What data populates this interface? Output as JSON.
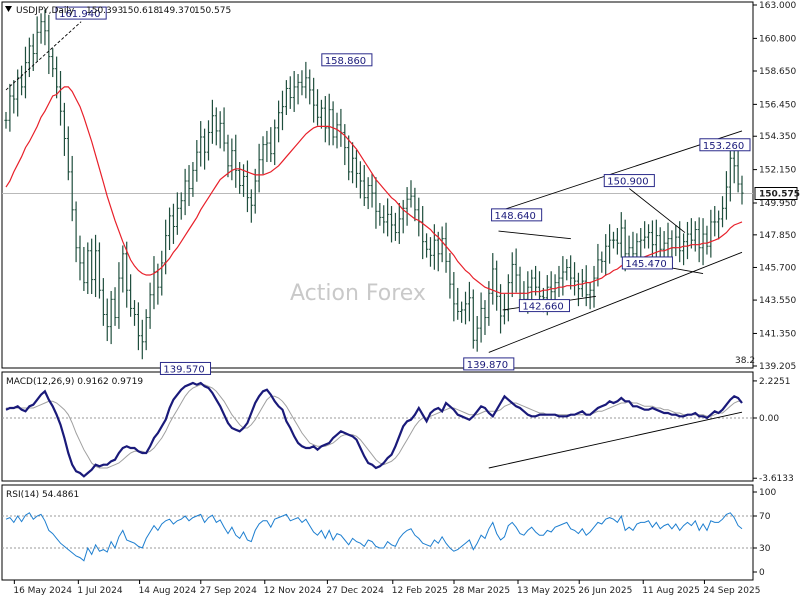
{
  "chart_data": [
    {
      "type": "ohlc",
      "title": "USDJPY,Daily",
      "ohlc_readout": [
        "150.393",
        "150.618",
        "149.370",
        "150.575"
      ],
      "watermark": "Action Forex",
      "ylim": [
        139.205,
        163.0
      ],
      "y_tick_labels": [
        "163.000",
        "160.800",
        "158.650",
        "156.450",
        "154.350",
        "152.150",
        "149.950",
        "147.850",
        "145.700",
        "143.550",
        "141.350",
        "139.205"
      ],
      "x_tick_labels": [
        "16 May 2024",
        "1 Jul 2024",
        "14 Aug 2024",
        "27 Sep 2024",
        "12 Nov 2024",
        "27 Dec 2024",
        "12 Feb 2025",
        "28 Mar 2025",
        "13 May 2025",
        "26 Jun 2025",
        "11 Aug 2025",
        "24 Sep 2025"
      ],
      "last_price": "150.575",
      "fib_label": "38.2",
      "price_labels": [
        {
          "text": "161.940",
          "value": 161.94,
          "date": "2024-07-03"
        },
        {
          "text": "158.860",
          "value": 158.86,
          "date": "2025-01-10"
        },
        {
          "text": "139.570",
          "value": 139.57,
          "date": "2024-09-16"
        },
        {
          "text": "139.870",
          "value": 139.87,
          "date": "2025-04-22"
        },
        {
          "text": "148.640",
          "value": 148.64,
          "date": "2025-05-12"
        },
        {
          "text": "142.660",
          "value": 142.66,
          "date": "2025-06-01"
        },
        {
          "text": "150.900",
          "value": 150.9,
          "date": "2025-08-01"
        },
        {
          "text": "145.470",
          "value": 145.47,
          "date": "2025-08-14"
        },
        {
          "text": "153.260",
          "value": 153.26,
          "date": "2025-10-10"
        }
      ],
      "moving_average_color": "#e8202a",
      "bar_color": "#1f4e3d",
      "close_series": [
        155.4,
        157.0,
        156.8,
        158.2,
        157.6,
        159.2,
        160.3,
        159.8,
        161.2,
        161.9,
        161.3,
        159.6,
        158.8,
        157.6,
        156.0,
        154.2,
        152.0,
        149.5,
        147.0,
        146.0,
        144.7,
        146.8,
        144.9,
        146.8,
        144.2,
        142.6,
        141.8,
        143.6,
        142.4,
        145.0,
        146.6,
        144.2,
        143.0,
        142.6,
        141.2,
        140.8,
        142.4,
        143.9,
        145.4,
        144.4,
        146.0,
        147.8,
        149.1,
        148.4,
        149.6,
        150.1,
        151.4,
        150.9,
        152.1,
        153.3,
        154.3,
        153.3,
        154.6,
        155.7,
        154.7,
        155.2,
        153.9,
        152.4,
        153.4,
        152.1,
        151.1,
        151.7,
        150.3,
        149.8,
        151.4,
        152.8,
        153.8,
        153.9,
        153.2,
        154.9,
        155.9,
        156.3,
        157.5,
        156.9,
        157.6,
        157.9,
        157.6,
        158.2,
        157.4,
        156.4,
        155.6,
        156.2,
        154.9,
        156.1,
        154.3,
        155.1,
        154.6,
        153.6,
        152.0,
        152.9,
        151.9,
        151.4,
        150.3,
        151.1,
        150.6,
        149.4,
        149.0,
        148.7,
        149.2,
        148.5,
        148.0,
        148.9,
        149.6,
        150.2,
        150.4,
        149.5,
        148.7,
        147.4,
        146.9,
        146.5,
        147.5,
        146.6,
        147.6,
        146.1,
        144.6,
        143.3,
        142.8,
        142.9,
        143.3,
        143.7,
        140.9,
        141.7,
        143.0,
        142.4,
        144.0,
        145.6,
        143.8,
        142.5,
        142.9,
        144.7,
        145.9,
        145.2,
        144.0,
        143.6,
        144.4,
        145.0,
        144.4,
        143.8,
        143.7,
        144.4,
        144.1,
        144.7,
        145.0,
        145.4,
        145.7,
        145.0,
        144.8,
        144.3,
        144.8,
        143.9,
        144.2,
        145.0,
        146.2,
        146.1,
        147.1,
        147.5,
        147.5,
        147.3,
        148.3,
        146.6,
        147.0,
        146.6,
        147.4,
        147.5,
        147.7,
        148.0,
        147.2,
        147.8,
        146.9,
        147.3,
        147.6,
        147.0,
        147.7,
        146.8,
        147.4,
        147.9,
        147.5,
        148.2,
        147.0,
        147.9,
        147.1,
        148.7,
        148.7,
        148.9,
        149.6,
        151.0,
        152.9,
        152.4,
        151.2,
        150.6
      ],
      "ma_series": [
        151.0,
        151.4,
        152.0,
        152.5,
        153.0,
        153.6,
        154.0,
        154.5,
        155.0,
        155.6,
        156.0,
        156.5,
        157.0,
        157.1,
        157.4,
        157.6,
        157.6,
        157.3,
        156.8,
        156.3,
        155.6,
        154.8,
        154.0,
        153.1,
        152.2,
        151.3,
        150.4,
        149.6,
        148.8,
        148.1,
        147.4,
        146.8,
        146.2,
        145.8,
        145.5,
        145.3,
        145.2,
        145.2,
        145.3,
        145.5,
        145.7,
        146.0,
        146.3,
        146.7,
        147.0,
        147.4,
        147.8,
        148.2,
        148.6,
        149.0,
        149.5,
        149.9,
        150.3,
        150.7,
        151.1,
        151.5,
        151.7,
        151.9,
        152.1,
        152.2,
        152.2,
        152.1,
        152.0,
        151.9,
        151.8,
        151.8,
        151.8,
        151.9,
        152.0,
        152.2,
        152.4,
        152.7,
        153.0,
        153.3,
        153.6,
        153.9,
        154.2,
        154.5,
        154.7,
        154.9,
        155.0,
        155.0,
        155.0,
        155.0,
        154.9,
        154.8,
        154.6,
        154.4,
        154.1,
        153.8,
        153.5,
        153.1,
        152.7,
        152.3,
        151.9,
        151.5,
        151.2,
        150.9,
        150.6,
        150.3,
        150.1,
        149.8,
        149.5,
        149.3,
        149.1,
        148.9,
        148.8,
        148.6,
        148.4,
        148.2,
        147.9,
        147.7,
        147.4,
        147.1,
        146.8,
        146.5,
        146.1,
        145.8,
        145.5,
        145.3,
        145.0,
        144.8,
        144.6,
        144.4,
        144.3,
        144.2,
        144.1,
        144.0,
        144.0,
        144.0,
        144.0,
        144.0,
        144.0,
        144.0,
        144.0,
        144.1,
        144.1,
        144.1,
        144.2,
        144.2,
        144.3,
        144.3,
        144.4,
        144.4,
        144.5,
        144.5,
        144.5,
        144.6,
        144.6,
        144.7,
        144.7,
        144.8,
        144.9,
        145.0,
        145.2,
        145.3,
        145.5,
        145.6,
        145.8,
        145.9,
        146.0,
        146.1,
        146.2,
        146.3,
        146.4,
        146.5,
        146.6,
        146.7,
        146.8,
        146.8,
        146.9,
        147.0,
        147.0,
        147.0,
        147.1,
        147.1,
        147.2,
        147.2,
        147.2,
        147.3,
        147.3,
        147.4,
        147.5,
        147.6,
        147.8,
        148.0,
        148.3,
        148.5,
        148.6,
        148.7
      ],
      "trendlines": [
        {
          "from": [
            "2024-05-10",
            157.4
          ],
          "to": [
            "2024-07-03",
            161.9
          ],
          "style": "dashed"
        },
        {
          "from": [
            "2025-04-29",
            149.4
          ],
          "to": [
            "2025-10-21",
            154.7
          ],
          "style": "solid"
        },
        {
          "from": [
            "2025-04-22",
            140.1
          ],
          "to": [
            "2025-10-21",
            146.7
          ],
          "style": "solid"
        },
        {
          "from": [
            "2025-04-29",
            148.1
          ],
          "to": [
            "2025-06-20",
            147.6
          ],
          "style": "solid"
        },
        {
          "from": [
            "2025-05-02",
            142.9
          ],
          "to": [
            "2025-07-08",
            143.8
          ],
          "style": "solid"
        },
        {
          "from": [
            "2025-08-01",
            150.9
          ],
          "to": [
            "2025-09-10",
            148.0
          ],
          "style": "solid"
        },
        {
          "from": [
            "2025-08-05",
            146.1
          ],
          "to": [
            "2025-09-23",
            145.3
          ],
          "style": "solid"
        }
      ]
    },
    {
      "type": "line",
      "title": "MACD(12,26,9) 0.9162 0.9719",
      "ylim": [
        -3.6,
        2.4
      ],
      "y_tick_labels": [
        "2.2251",
        "0.00",
        "-3.6133"
      ],
      "series_colors": [
        "#1a1a7a",
        "#a0a0a0"
      ],
      "macd": [
        0.5,
        0.6,
        0.6,
        0.7,
        0.5,
        0.4,
        0.7,
        0.8,
        1.1,
        1.4,
        1.6,
        1.1,
        0.7,
        0.2,
        -0.4,
        -1.2,
        -2.1,
        -2.8,
        -3.2,
        -3.3,
        -3.5,
        -3.3,
        -3.1,
        -2.8,
        -2.9,
        -2.8,
        -2.8,
        -2.6,
        -2.5,
        -2.1,
        -1.8,
        -1.7,
        -1.8,
        -1.8,
        -2.0,
        -2.1,
        -2.1,
        -1.7,
        -1.2,
        -0.9,
        -0.5,
        -0.1,
        0.6,
        1.1,
        1.4,
        1.7,
        1.9,
        2.0,
        2.1,
        2.0,
        2.1,
        1.9,
        1.8,
        1.5,
        1.1,
        0.7,
        0.2,
        -0.3,
        -0.6,
        -0.7,
        -0.8,
        -0.6,
        -0.3,
        0.3,
        0.9,
        1.3,
        1.6,
        1.7,
        1.4,
        1.0,
        0.7,
        0.5,
        -0.2,
        -0.6,
        -1.1,
        -1.5,
        -1.7,
        -1.8,
        -1.8,
        -1.7,
        -1.9,
        -1.7,
        -1.6,
        -1.5,
        -1.2,
        -1.0,
        -0.8,
        -0.9,
        -1.0,
        -1.1,
        -1.3,
        -1.8,
        -2.3,
        -2.7,
        -2.8,
        -3.0,
        -2.9,
        -2.7,
        -2.4,
        -2.2,
        -1.7,
        -1.1,
        -0.5,
        -0.2,
        -0.1,
        0.2,
        0.6,
        0.2,
        -0.2,
        0.3,
        0.5,
        0.6,
        0.4,
        0.9,
        0.7,
        0.5,
        0.2,
        0.1,
        0.0,
        -0.1,
        0.1,
        0.4,
        0.7,
        0.6,
        0.3,
        0.1,
        0.5,
        0.9,
        1.3,
        1.1,
        0.9,
        0.7,
        0.6,
        0.4,
        0.2,
        0.1,
        0.1,
        0.2,
        0.2,
        0.2,
        0.2,
        0.2,
        0.1,
        0.1,
        0.1,
        0.2,
        0.2,
        0.3,
        0.4,
        0.2,
        0.2,
        0.4,
        0.6,
        0.7,
        0.8,
        1.0,
        0.9,
        1.0,
        1.2,
        1.0,
        1.0,
        0.7,
        0.7,
        0.6,
        0.5,
        0.5,
        0.6,
        0.5,
        0.4,
        0.3,
        0.3,
        0.2,
        0.2,
        0.1,
        0.1,
        0.2,
        0.2,
        0.3,
        0.1,
        0.1,
        0.0,
        0.2,
        0.4,
        0.3,
        0.5,
        0.8,
        1.1,
        1.3,
        1.2,
        0.9
      ],
      "signal": [
        0.6,
        0.6,
        0.6,
        0.6,
        0.6,
        0.6,
        0.6,
        0.6,
        0.7,
        0.8,
        0.9,
        1.0,
        1.0,
        0.9,
        0.7,
        0.5,
        0.2,
        -0.3,
        -0.9,
        -1.4,
        -1.9,
        -2.3,
        -2.7,
        -2.9,
        -3.0,
        -3.0,
        -3.0,
        -2.9,
        -2.8,
        -2.7,
        -2.5,
        -2.3,
        -2.1,
        -2.0,
        -2.0,
        -2.0,
        -2.1,
        -2.0,
        -1.8,
        -1.5,
        -1.2,
        -0.8,
        -0.3,
        0.1,
        0.5,
        0.9,
        1.3,
        1.6,
        1.8,
        1.9,
        2.0,
        2.0,
        1.9,
        1.8,
        1.6,
        1.3,
        1.0,
        0.6,
        0.2,
        -0.1,
        -0.4,
        -0.6,
        -0.6,
        -0.4,
        -0.1,
        0.3,
        0.7,
        1.1,
        1.3,
        1.3,
        1.2,
        1.0,
        0.7,
        0.3,
        -0.1,
        -0.5,
        -0.9,
        -1.2,
        -1.5,
        -1.6,
        -1.7,
        -1.7,
        -1.7,
        -1.6,
        -1.5,
        -1.3,
        -1.1,
        -1.0,
        -1.0,
        -1.0,
        -1.1,
        -1.3,
        -1.6,
        -1.9,
        -2.2,
        -2.5,
        -2.7,
        -2.8,
        -2.7,
        -2.6,
        -2.4,
        -2.1,
        -1.7,
        -1.3,
        -0.9,
        -0.5,
        -0.2,
        0.0,
        0.0,
        0.1,
        0.2,
        0.3,
        0.4,
        0.5,
        0.6,
        0.6,
        0.5,
        0.4,
        0.3,
        0.2,
        0.2,
        0.2,
        0.3,
        0.4,
        0.4,
        0.4,
        0.4,
        0.5,
        0.7,
        0.8,
        0.9,
        0.9,
        0.8,
        0.7,
        0.6,
        0.5,
        0.4,
        0.3,
        0.3,
        0.2,
        0.2,
        0.2,
        0.2,
        0.2,
        0.2,
        0.2,
        0.2,
        0.2,
        0.2,
        0.2,
        0.2,
        0.3,
        0.4,
        0.4,
        0.5,
        0.6,
        0.7,
        0.8,
        0.9,
        0.9,
        1.0,
        0.9,
        0.9,
        0.8,
        0.7,
        0.7,
        0.7,
        0.6,
        0.6,
        0.5,
        0.5,
        0.4,
        0.3,
        0.3,
        0.2,
        0.2,
        0.2,
        0.2,
        0.2,
        0.2,
        0.1,
        0.1,
        0.2,
        0.3,
        0.3,
        0.5,
        0.7,
        0.9,
        1.0,
        1.0
      ],
      "trendline": {
        "from": [
          "2025-04-22",
          -3.0
        ],
        "to": [
          "2025-10-21",
          0.35
        ]
      }
    },
    {
      "type": "line",
      "title": "RSI(14) 54.4861",
      "ylim": [
        0,
        100
      ],
      "y_tick_labels": [
        "100",
        "70",
        "30",
        "0"
      ],
      "levels": [
        70,
        30
      ],
      "series_color": "#1e7fd0",
      "rsi": [
        66,
        68,
        62,
        70,
        63,
        71,
        74,
        66,
        70,
        72,
        64,
        52,
        48,
        42,
        36,
        32,
        28,
        24,
        20,
        18,
        14,
        30,
        22,
        34,
        26,
        28,
        25,
        38,
        30,
        44,
        52,
        40,
        38,
        36,
        32,
        30,
        42,
        50,
        58,
        52,
        60,
        64,
        66,
        60,
        64,
        66,
        70,
        64,
        68,
        70,
        72,
        62,
        68,
        71,
        62,
        65,
        56,
        48,
        56,
        46,
        42,
        50,
        40,
        38,
        52,
        60,
        64,
        64,
        56,
        66,
        68,
        70,
        72,
        64,
        66,
        68,
        62,
        66,
        58,
        50,
        46,
        52,
        42,
        52,
        40,
        48,
        46,
        40,
        34,
        42,
        38,
        36,
        32,
        40,
        38,
        32,
        30,
        30,
        38,
        34,
        32,
        42,
        48,
        52,
        54,
        46,
        42,
        36,
        34,
        32,
        40,
        36,
        44,
        36,
        30,
        26,
        28,
        32,
        36,
        40,
        28,
        36,
        46,
        42,
        54,
        62,
        48,
        40,
        44,
        58,
        62,
        56,
        48,
        46,
        52,
        56,
        50,
        46,
        46,
        52,
        50,
        56,
        58,
        60,
        62,
        54,
        52,
        48,
        54,
        46,
        50,
        56,
        62,
        60,
        66,
        68,
        66,
        62,
        70,
        52,
        56,
        52,
        60,
        62,
        62,
        64,
        56,
        62,
        54,
        58,
        60,
        54,
        60,
        52,
        58,
        62,
        58,
        64,
        52,
        60,
        52,
        64,
        62,
        62,
        66,
        72,
        74,
        68,
        58,
        54
      ]
    }
  ]
}
